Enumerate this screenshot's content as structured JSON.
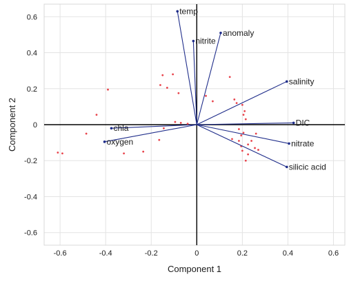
{
  "chart_data": {
    "type": "scatter",
    "subtype": "pca-biplot",
    "title": "",
    "xlabel": "Component 1",
    "ylabel": "Component 2",
    "xlim": [
      -0.67,
      0.65
    ],
    "ylim": [
      -0.67,
      0.67
    ],
    "x_ticks": [
      -0.6,
      -0.4,
      -0.2,
      0,
      0.2,
      0.4,
      0.6
    ],
    "y_ticks": [
      -0.6,
      -0.4,
      -0.2,
      0,
      0.2,
      0.4,
      0.6
    ],
    "x_tick_labels": [
      "-0.6",
      "-0.4",
      "-0.2",
      "0",
      "0.2",
      "0.4",
      "0.6"
    ],
    "y_tick_labels": [
      "-0.6",
      "-0.4",
      "-0.2",
      "0",
      "0.2",
      "0.4",
      "0.6"
    ],
    "grid": true,
    "vector_color": "#1f2d8a",
    "point_color": "#e8434b",
    "axis_color": "#000000",
    "vectors": [
      {
        "label": "temp",
        "x": -0.085,
        "y": 0.63
      },
      {
        "label": "anomaly",
        "x": 0.105,
        "y": 0.51
      },
      {
        "label": "nitrite",
        "x": -0.015,
        "y": 0.465
      },
      {
        "label": "salinity",
        "x": 0.395,
        "y": 0.24
      },
      {
        "label": "DIC",
        "x": 0.425,
        "y": 0.01
      },
      {
        "label": "nitrate",
        "x": 0.405,
        "y": -0.105
      },
      {
        "label": "silicic acid",
        "x": 0.395,
        "y": -0.235
      },
      {
        "label": "chla",
        "x": -0.375,
        "y": -0.02
      },
      {
        "label": "oxygen",
        "x": -0.405,
        "y": -0.095
      }
    ],
    "points": [
      {
        "x": -0.61,
        "y": -0.155
      },
      {
        "x": -0.59,
        "y": -0.16
      },
      {
        "x": -0.485,
        "y": -0.05
      },
      {
        "x": -0.44,
        "y": 0.055
      },
      {
        "x": -0.39,
        "y": 0.195
      },
      {
        "x": -0.32,
        "y": -0.16
      },
      {
        "x": -0.235,
        "y": -0.15
      },
      {
        "x": -0.165,
        "y": -0.085
      },
      {
        "x": -0.095,
        "y": 0.015
      },
      {
        "x": -0.07,
        "y": 0.01
      },
      {
        "x": -0.04,
        "y": 0.005
      },
      {
        "x": -0.145,
        "y": -0.02
      },
      {
        "x": -0.15,
        "y": 0.275
      },
      {
        "x": -0.16,
        "y": 0.22
      },
      {
        "x": -0.13,
        "y": 0.205
      },
      {
        "x": -0.105,
        "y": 0.28
      },
      {
        "x": -0.08,
        "y": 0.175
      },
      {
        "x": 0.04,
        "y": 0.16
      },
      {
        "x": 0.07,
        "y": 0.13
      },
      {
        "x": 0.145,
        "y": 0.265
      },
      {
        "x": 0.165,
        "y": 0.14
      },
      {
        "x": 0.175,
        "y": 0.12
      },
      {
        "x": 0.2,
        "y": 0.11
      },
      {
        "x": 0.21,
        "y": 0.075
      },
      {
        "x": 0.205,
        "y": 0.055
      },
      {
        "x": 0.215,
        "y": 0.03
      },
      {
        "x": 0.155,
        "y": -0.08
      },
      {
        "x": 0.185,
        "y": -0.09
      },
      {
        "x": 0.195,
        "y": -0.06
      },
      {
        "x": 0.205,
        "y": -0.045
      },
      {
        "x": 0.225,
        "y": -0.11
      },
      {
        "x": 0.24,
        "y": -0.09
      },
      {
        "x": 0.26,
        "y": -0.05
      },
      {
        "x": 0.195,
        "y": -0.12
      },
      {
        "x": 0.2,
        "y": -0.145
      },
      {
        "x": 0.225,
        "y": -0.165
      },
      {
        "x": 0.215,
        "y": -0.2
      },
      {
        "x": 0.255,
        "y": -0.13
      },
      {
        "x": 0.27,
        "y": -0.14
      },
      {
        "x": 0.185,
        "y": -0.025
      }
    ]
  }
}
